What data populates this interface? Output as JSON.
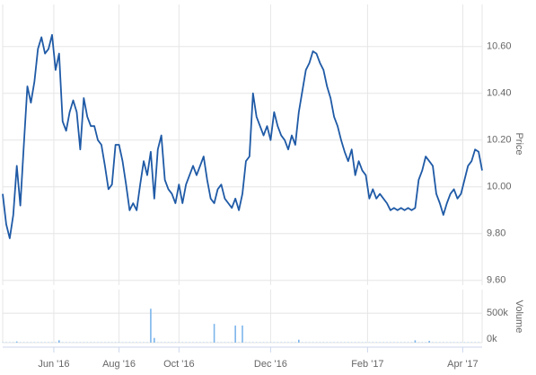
{
  "chart_data": [
    {
      "type": "line",
      "y_label": "Price",
      "color": "#1f5aa6",
      "grid": true,
      "xlim": [
        0,
        136
      ],
      "xticks": [
        {
          "value": 14.5,
          "label": "Jun '16"
        },
        {
          "value": 33,
          "label": "Aug '16"
        },
        {
          "value": 50,
          "label": "Oct '16"
        },
        {
          "value": 76,
          "label": "Dec '16"
        },
        {
          "value": 103.5,
          "label": "Feb '17"
        },
        {
          "value": 130.5,
          "label": "Apr '17"
        }
      ],
      "ylim": [
        9.58,
        10.78
      ],
      "yticks": [
        {
          "value": 9.6,
          "label": "9.60"
        },
        {
          "value": 9.8,
          "label": "9.80"
        },
        {
          "value": 10.0,
          "label": "10.00"
        },
        {
          "value": 10.2,
          "label": "10.20"
        },
        {
          "value": 10.4,
          "label": "10.40"
        },
        {
          "value": 10.6,
          "label": "10.60"
        }
      ],
      "values": [
        9.97,
        9.84,
        9.78,
        9.88,
        10.09,
        9.92,
        10.18,
        10.43,
        10.36,
        10.45,
        10.59,
        10.64,
        10.57,
        10.59,
        10.65,
        10.5,
        10.57,
        10.28,
        10.24,
        10.32,
        10.37,
        10.32,
        10.16,
        10.38,
        10.3,
        10.26,
        10.26,
        10.2,
        10.18,
        10.09,
        9.99,
        10.01,
        10.18,
        10.18,
        10.11,
        10.01,
        9.9,
        9.93,
        9.9,
        10.01,
        10.11,
        10.05,
        10.15,
        9.95,
        10.16,
        10.22,
        10.03,
        9.99,
        9.97,
        9.93,
        10.01,
        9.93,
        10.01,
        10.05,
        10.09,
        10.05,
        10.09,
        10.13,
        10.03,
        9.95,
        9.93,
        9.99,
        10.01,
        9.95,
        9.93,
        9.91,
        9.95,
        9.9,
        9.97,
        10.11,
        10.13,
        10.4,
        10.3,
        10.26,
        10.22,
        10.26,
        10.2,
        10.32,
        10.26,
        10.22,
        10.2,
        10.16,
        10.22,
        10.18,
        10.32,
        10.41,
        10.5,
        10.53,
        10.58,
        10.57,
        10.53,
        10.5,
        10.43,
        10.38,
        10.3,
        10.26,
        10.2,
        10.15,
        10.11,
        10.16,
        10.05,
        10.11,
        10.07,
        10.05,
        9.95,
        9.99,
        9.95,
        9.97,
        9.95,
        9.93,
        9.9,
        9.91,
        9.9,
        9.91,
        9.9,
        9.91,
        9.9,
        9.91,
        10.03,
        10.07,
        10.13,
        10.11,
        10.09,
        9.97,
        9.93,
        9.88,
        9.93,
        9.97,
        9.99,
        9.95,
        9.97,
        10.03,
        10.09,
        10.11,
        10.16,
        10.15,
        10.07
      ]
    },
    {
      "type": "bar",
      "y_label": "Volume",
      "color": "#7cb5ec",
      "grid": true,
      "xlim": [
        0,
        136
      ],
      "ylim": [
        0,
        900000
      ],
      "yticks": [
        {
          "value": 0,
          "label": "0k"
        },
        {
          "value": 500000,
          "label": "500k"
        }
      ],
      "values": [
        5000,
        5000,
        5000,
        5000,
        20000,
        5000,
        5000,
        5000,
        5000,
        5000,
        5000,
        5000,
        5000,
        5000,
        5000,
        5000,
        40000,
        5000,
        5000,
        5000,
        5000,
        5000,
        5000,
        5000,
        5000,
        5000,
        5000,
        5000,
        5000,
        5000,
        5000,
        5000,
        5000,
        5000,
        5000,
        5000,
        5000,
        5000,
        5000,
        5000,
        5000,
        5000,
        575000,
        80000,
        5000,
        5000,
        5000,
        5000,
        5000,
        5000,
        5000,
        5000,
        5000,
        5000,
        5000,
        5000,
        5000,
        5000,
        5000,
        5000,
        318000,
        5000,
        5000,
        5000,
        5000,
        5000,
        290000,
        5000,
        290000,
        5000,
        5000,
        5000,
        5000,
        5000,
        5000,
        5000,
        5000,
        5000,
        5000,
        5000,
        5000,
        5000,
        5000,
        5000,
        50000,
        5000,
        5000,
        5000,
        5000,
        5000,
        5000,
        5000,
        5000,
        5000,
        5000,
        5000,
        5000,
        5000,
        5000,
        5000,
        5000,
        5000,
        5000,
        5000,
        5000,
        5000,
        5000,
        5000,
        5000,
        5000,
        5000,
        5000,
        5000,
        5000,
        5000,
        5000,
        5000,
        40000,
        5000,
        5000,
        5000,
        30000,
        5000,
        5000,
        5000,
        5000,
        5000,
        5000,
        5000,
        5000,
        5000,
        5000,
        5000,
        5000,
        5000,
        5000
      ]
    }
  ]
}
